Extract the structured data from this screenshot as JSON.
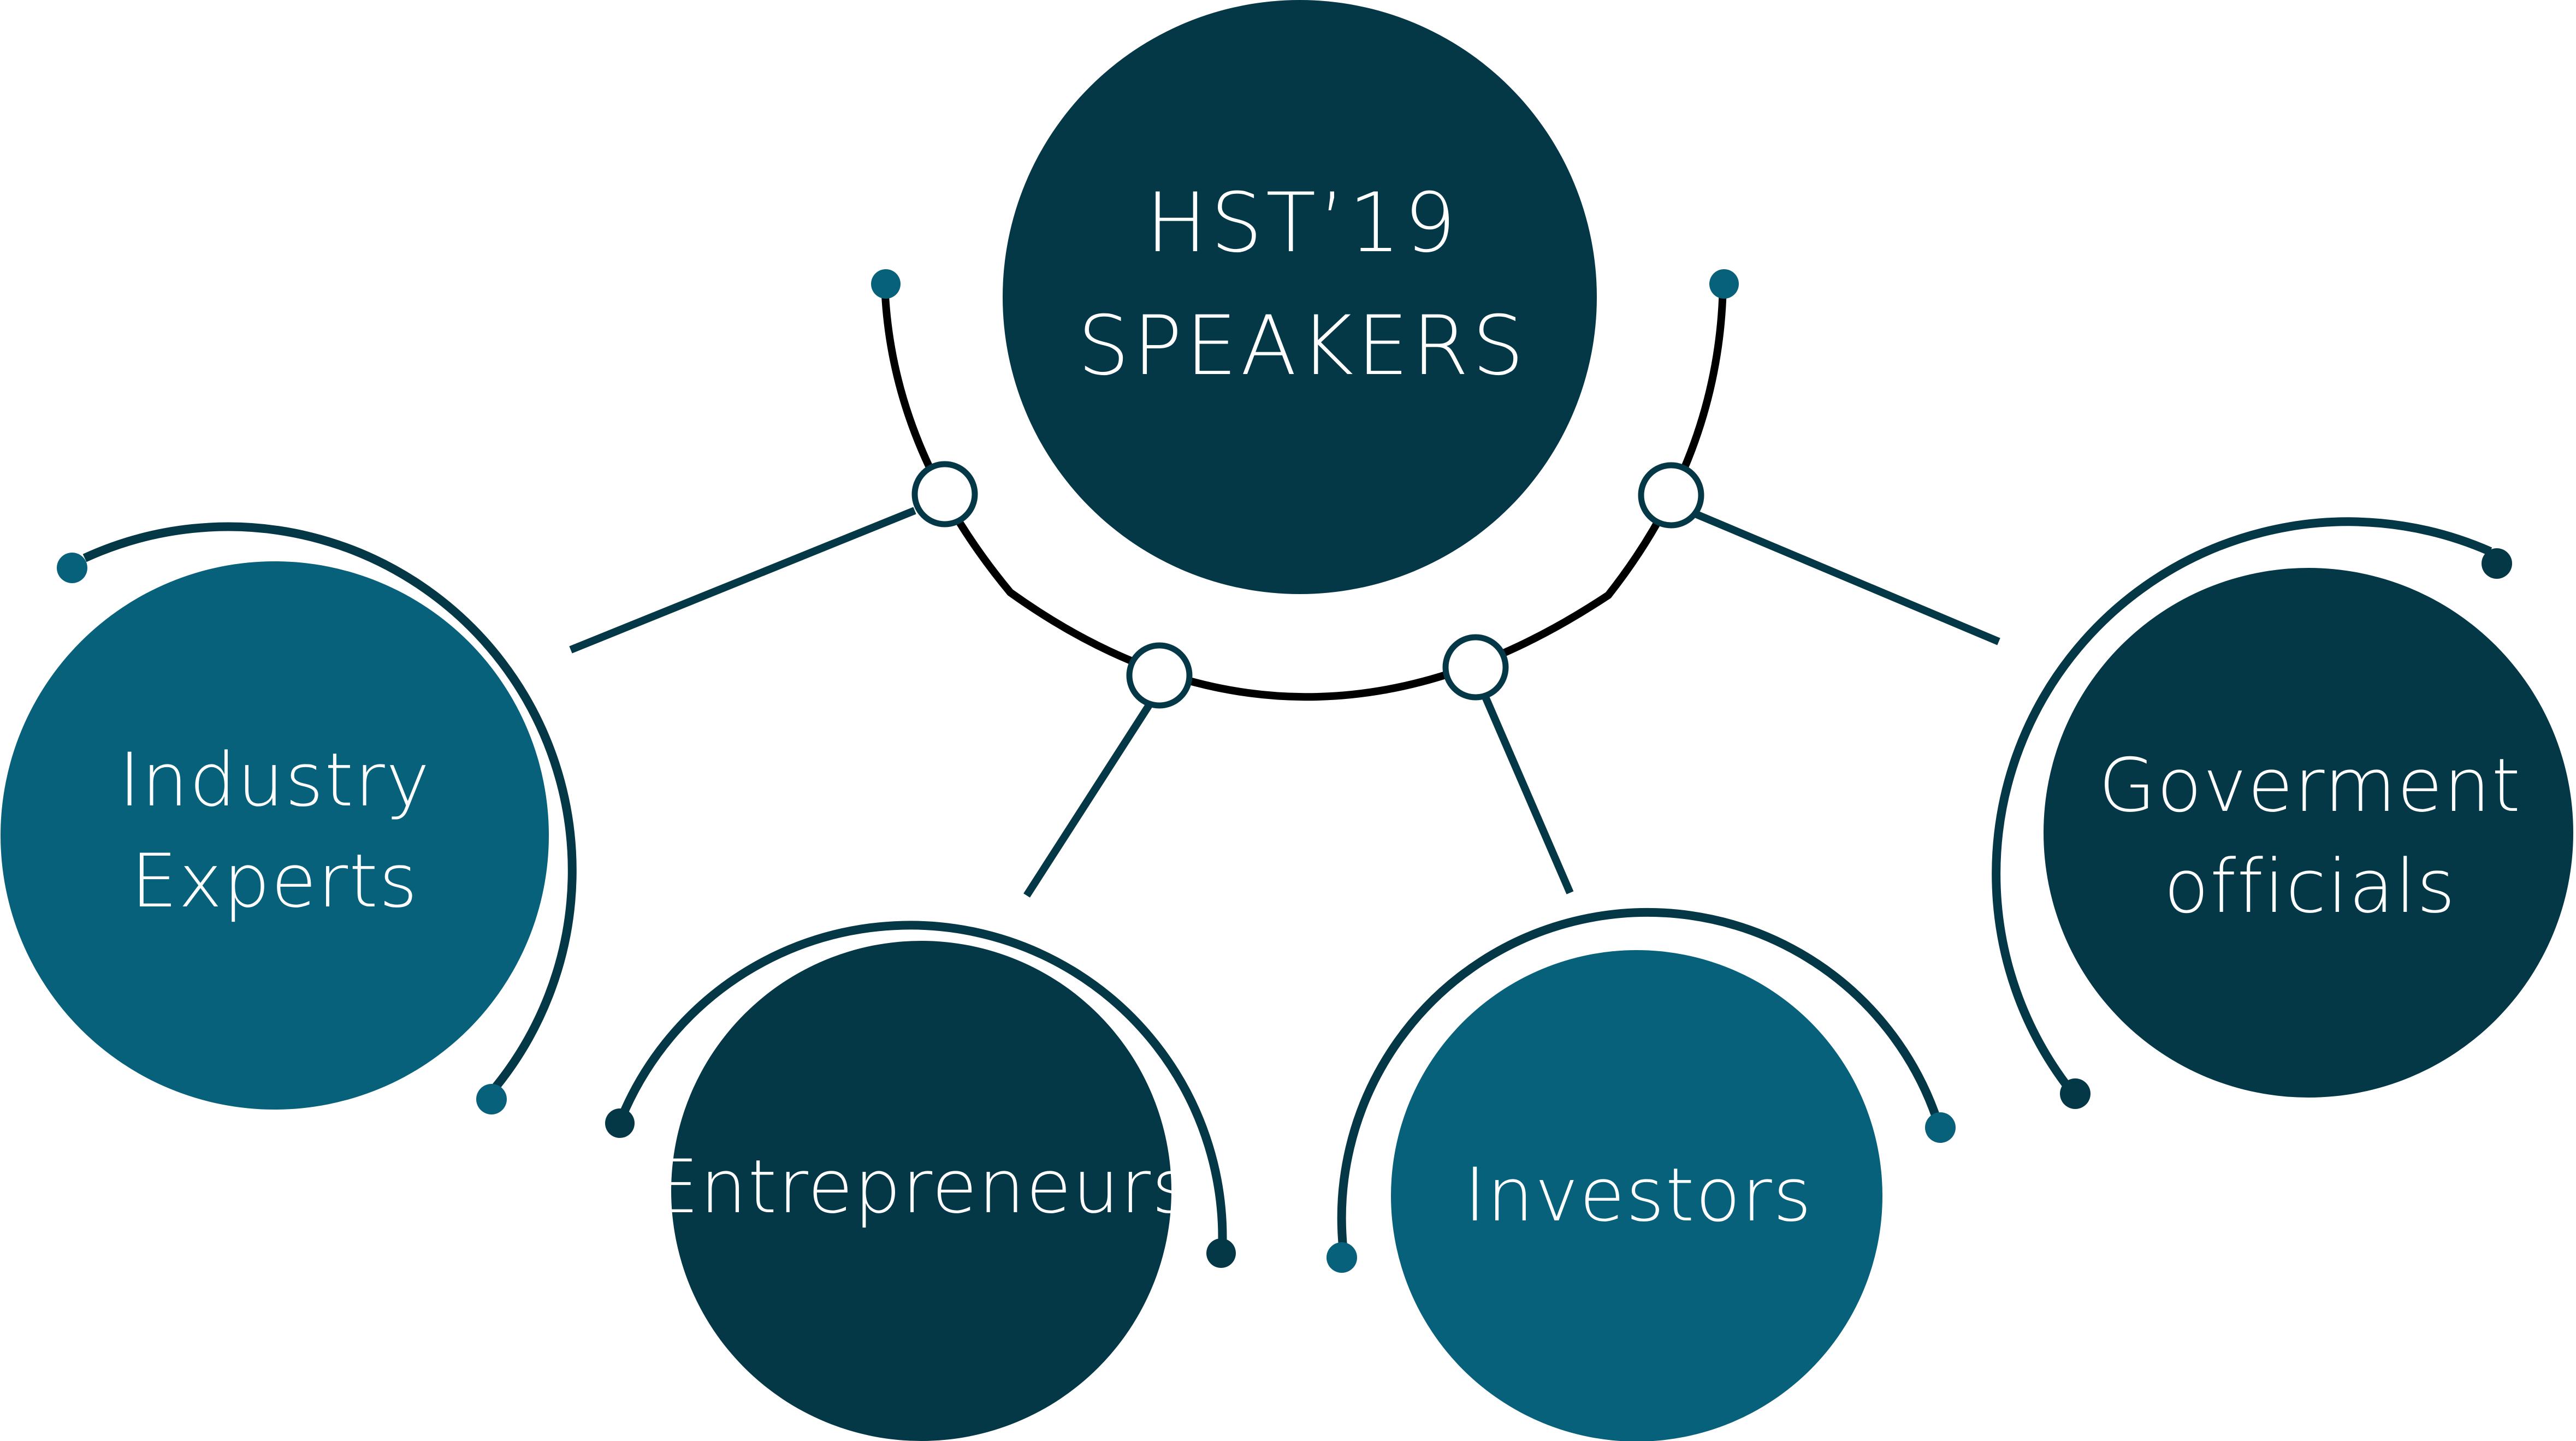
{
  "center": {
    "line1": "HST’19",
    "line2": "SPEAKERS"
  },
  "nodes": [
    {
      "id": "industry-experts",
      "line1": "Industry",
      "line2": "Experts"
    },
    {
      "id": "entrepreneurs",
      "line1": "Entrepreneurs",
      "line2": ""
    },
    {
      "id": "investors",
      "line1": "Investors",
      "line2": ""
    },
    {
      "id": "government-officials",
      "line1": "Goverment",
      "line2": "officials"
    }
  ],
  "colors": {
    "dark": "#053847",
    "teal": "#07617b",
    "line": "#053847",
    "main_arc": "#000000",
    "background": "#ffffff"
  }
}
